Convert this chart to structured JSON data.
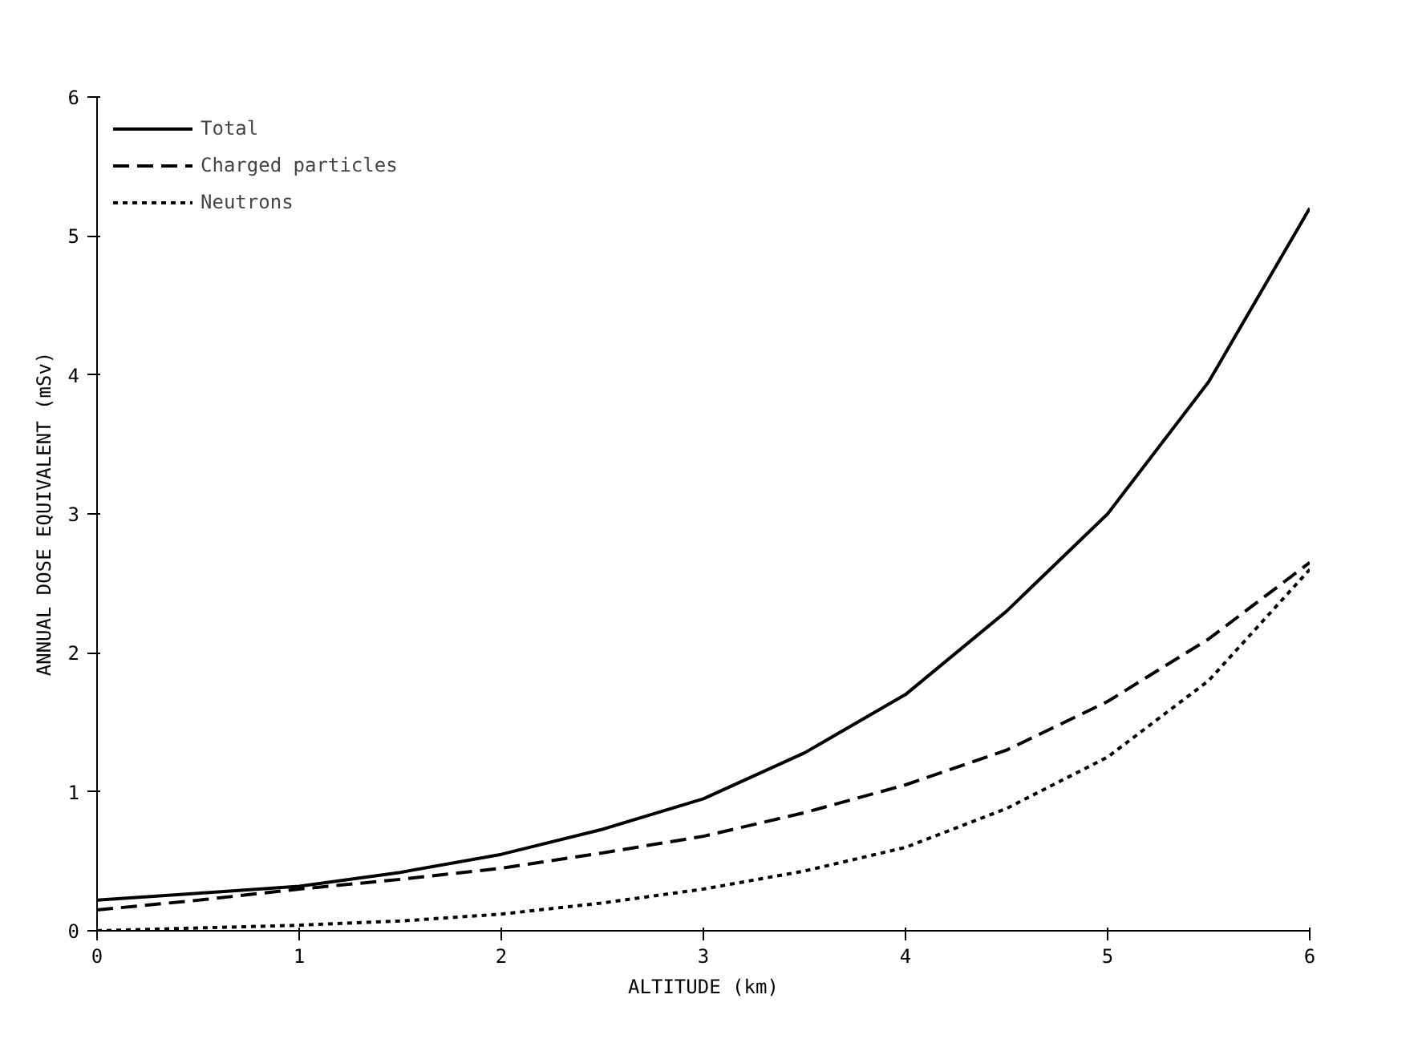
{
  "chart_data": {
    "type": "line",
    "xlabel": "ALTITUDE (km)",
    "ylabel": "ANNUAL DOSE EQUIVALENT (mSv)",
    "x": [
      0,
      0.5,
      1,
      1.5,
      2,
      2.5,
      3,
      3.5,
      4,
      4.5,
      5,
      5.5,
      6
    ],
    "series": [
      {
        "name": "Total",
        "color": "#000000",
        "line_style": "solid",
        "values": [
          0.22,
          0.27,
          0.32,
          0.42,
          0.55,
          0.73,
          0.95,
          1.28,
          1.7,
          2.3,
          3.0,
          3.95,
          5.2
        ]
      },
      {
        "name": "Charged particles",
        "color": "#000000",
        "line_style": "dashed",
        "values": [
          0.15,
          0.22,
          0.3,
          0.37,
          0.45,
          0.56,
          0.68,
          0.85,
          1.05,
          1.3,
          1.65,
          2.1,
          2.65
        ]
      },
      {
        "name": "Neutrons",
        "color": "#000000",
        "line_style": "dotted",
        "values": [
          0.0,
          0.02,
          0.04,
          0.07,
          0.12,
          0.2,
          0.3,
          0.43,
          0.6,
          0.88,
          1.25,
          1.8,
          2.6
        ]
      }
    ],
    "xlim": [
      0,
      6
    ],
    "ylim": [
      0,
      6
    ],
    "xticks": [
      0,
      1,
      2,
      3,
      4,
      5,
      6
    ],
    "yticks": [
      0,
      1,
      2,
      3,
      4,
      5,
      6
    ],
    "grid": false,
    "legend": "top left",
    "marker": "none"
  }
}
